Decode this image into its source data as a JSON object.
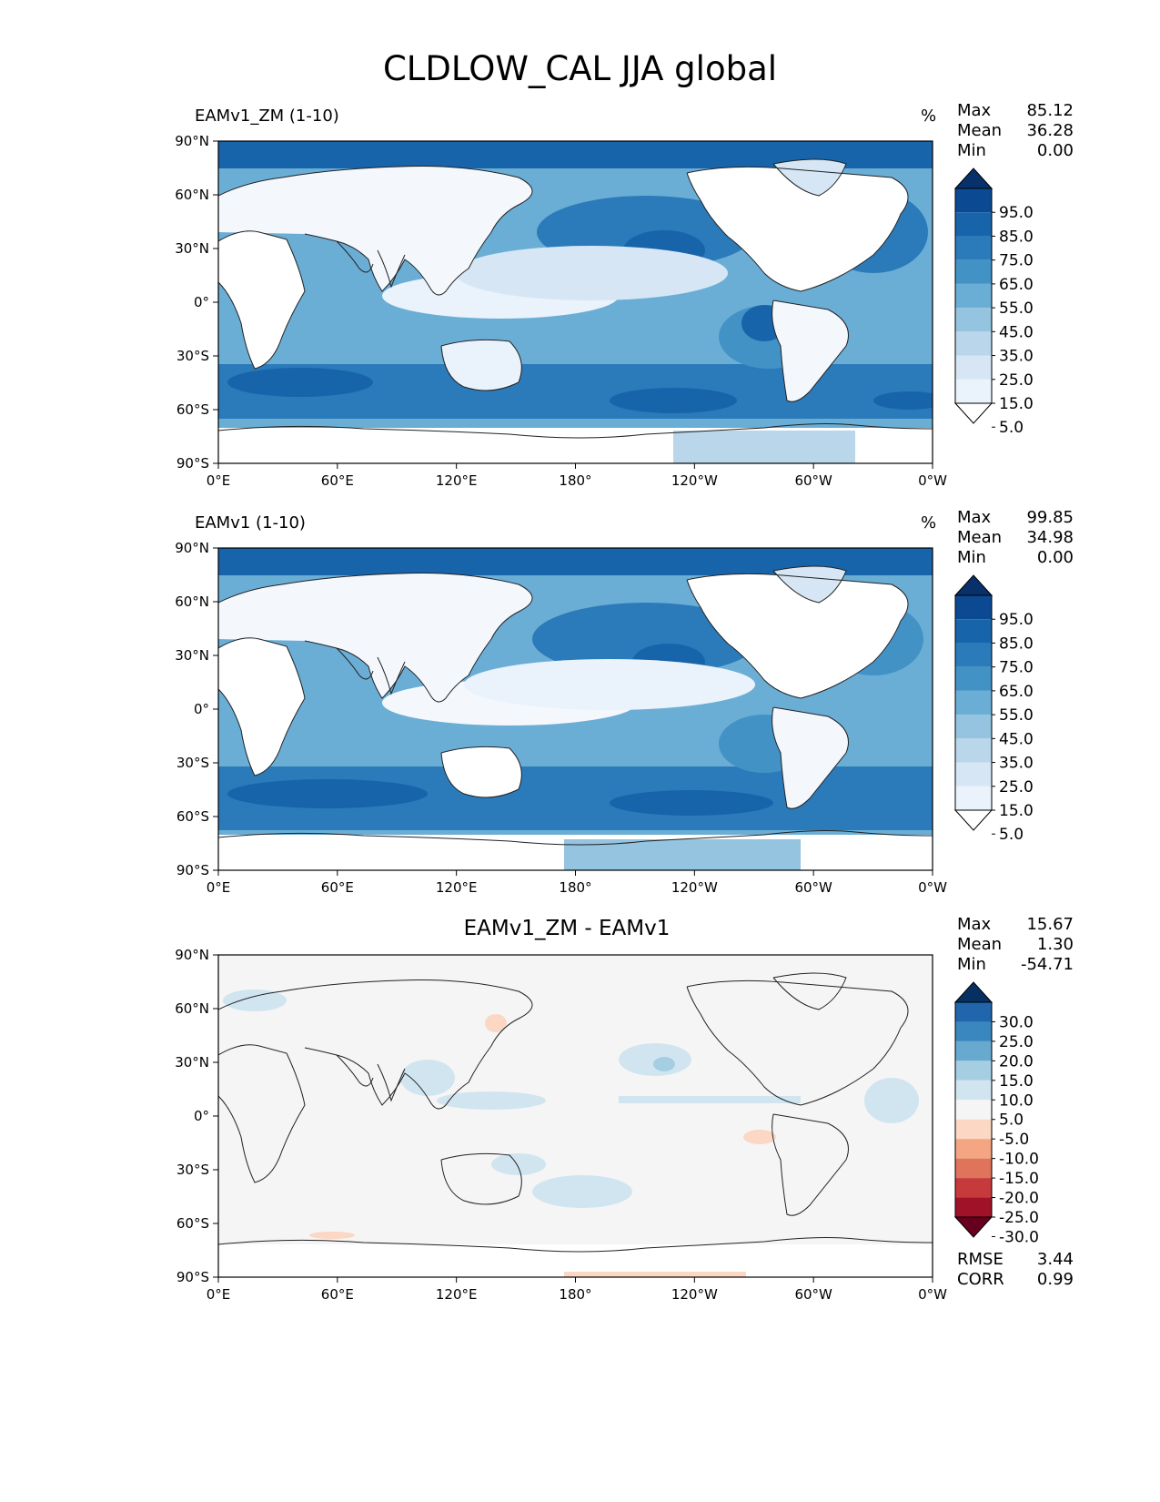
{
  "figure_title": "CLDLOW_CAL JJA global",
  "units": "%",
  "x_ticks": [
    "0°E",
    "60°E",
    "120°E",
    "180°",
    "120°W",
    "60°W",
    "0°W"
  ],
  "y_ticks": [
    "90°N",
    "60°N",
    "30°N",
    "0°",
    "30°S",
    "60°S",
    "90°S"
  ],
  "panels": [
    {
      "title": "EAMv1_ZM (1-10)",
      "stats": {
        "max_label": "Max",
        "max": "85.12",
        "mean_label": "Mean",
        "mean": "36.28",
        "min_label": "Min",
        "min": "0.00"
      }
    },
    {
      "title": "EAMv1 (1-10)",
      "stats": {
        "max_label": "Max",
        "max": "99.85",
        "mean_label": "Mean",
        "mean": "34.98",
        "min_label": "Min",
        "min": "0.00"
      }
    },
    {
      "title": "EAMv1_ZM - EAMv1",
      "stats": {
        "max_label": "Max",
        "max": "15.67",
        "mean_label": "Mean",
        "mean": "1.30",
        "min_label": "Min",
        "min": "-54.71"
      },
      "rmse_label": "RMSE",
      "rmse": "3.44",
      "corr_label": "CORR",
      "corr": "0.99"
    }
  ],
  "colorbar_main": {
    "labels": [
      "95.0",
      "85.0",
      "75.0",
      "65.0",
      "55.0",
      "45.0",
      "35.0",
      "25.0",
      "15.0",
      "5.0"
    ],
    "colors": [
      "#08306b",
      "#0b4a93",
      "#1764ab",
      "#2b7bba",
      "#4292c6",
      "#6aaed6",
      "#94c4df",
      "#bad6eb",
      "#d6e6f4",
      "#eaf2fb",
      "#ffffff"
    ]
  },
  "colorbar_diff": {
    "labels": [
      "30.0",
      "25.0",
      "20.0",
      "15.0",
      "10.0",
      "5.0",
      "-5.0",
      "-10.0",
      "-15.0",
      "-20.0",
      "-25.0",
      "-30.0"
    ],
    "colors": [
      "#053061",
      "#2166ac",
      "#3a87bf",
      "#67a9cf",
      "#a6cee3",
      "#d1e5f0",
      "#f5f5f5",
      "#fbd7c4",
      "#f4a582",
      "#e0735c",
      "#c63a3c",
      "#9f1228",
      "#67001f"
    ]
  },
  "chart_data": [
    {
      "type": "heatmap",
      "title": "EAMv1_ZM (1-10)",
      "variable": "CLDLOW_CAL",
      "season": "JJA",
      "units": "%",
      "xlim": [
        0,
        360
      ],
      "ylim": [
        -90,
        90
      ],
      "contour_levels": [
        0,
        5,
        15,
        25,
        35,
        45,
        55,
        65,
        75,
        85,
        95,
        100
      ],
      "max": 85.12,
      "mean": 36.28,
      "min": 0.0
    },
    {
      "type": "heatmap",
      "title": "EAMv1 (1-10)",
      "variable": "CLDLOW_CAL",
      "season": "JJA",
      "units": "%",
      "xlim": [
        0,
        360
      ],
      "ylim": [
        -90,
        90
      ],
      "contour_levels": [
        0,
        5,
        15,
        25,
        35,
        45,
        55,
        65,
        75,
        85,
        95,
        100
      ],
      "max": 99.85,
      "mean": 34.98,
      "min": 0.0
    },
    {
      "type": "heatmap",
      "title": "EAMv1_ZM - EAMv1",
      "variable": "CLDLOW_CAL difference",
      "season": "JJA",
      "xlim": [
        0,
        360
      ],
      "ylim": [
        -90,
        90
      ],
      "contour_levels": [
        -35,
        -30,
        -25,
        -20,
        -15,
        -10,
        -5,
        5,
        10,
        15,
        20,
        25,
        30,
        35
      ],
      "max": 15.67,
      "mean": 1.3,
      "min": -54.71,
      "rmse": 3.44,
      "corr": 0.99
    }
  ]
}
